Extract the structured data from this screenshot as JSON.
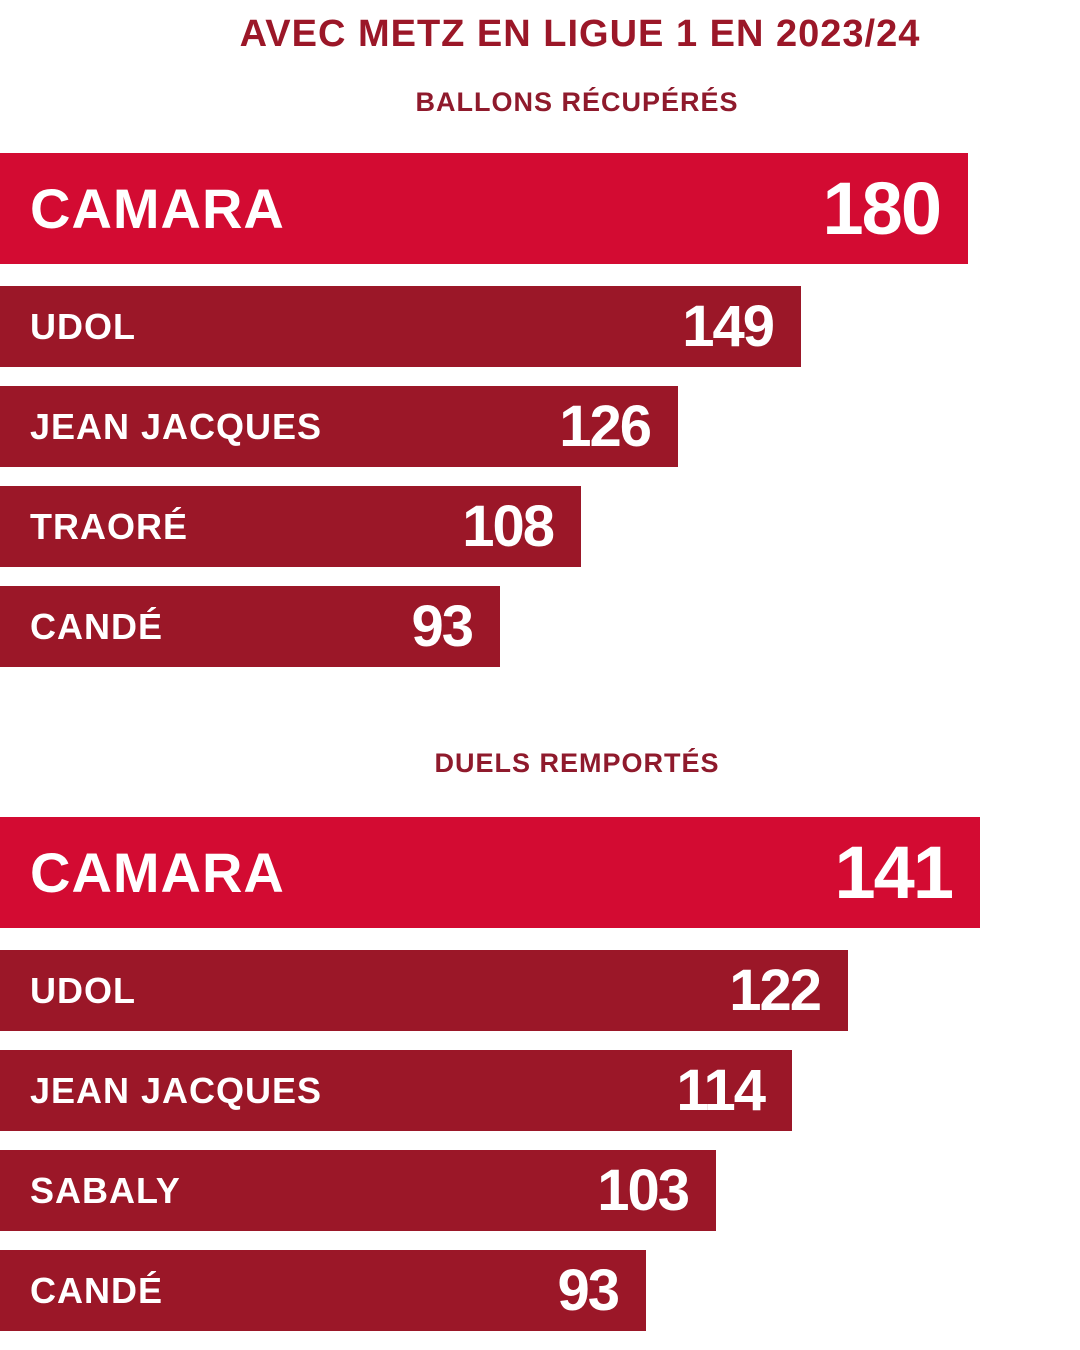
{
  "header": {
    "title": "AVEC METZ EN LIGUE 1 EN 2023/24"
  },
  "colors": {
    "highlight": "#d30b32",
    "bar": "#9b1728",
    "text": "#ffffff"
  },
  "chart_data": [
    {
      "type": "bar",
      "orientation": "horizontal",
      "title": "BALLONS RÉCUPÉRÉS",
      "categories": [
        "CAMARA",
        "UDOL",
        "JEAN JACQUES",
        "TRAORÉ",
        "CANDÉ"
      ],
      "values": [
        180,
        149,
        126,
        108,
        93
      ],
      "value_labels": [
        "180",
        "149",
        "126",
        "108",
        "93"
      ],
      "grid": false
    },
    {
      "type": "bar",
      "orientation": "horizontal",
      "title": "DUELS REMPORTÉS",
      "categories": [
        "CAMARA",
        "UDOL",
        "JEAN JACQUES",
        "SABALY",
        "CANDÉ"
      ],
      "values": [
        141,
        122,
        114,
        103,
        93
      ],
      "value_labels": [
        "141",
        "122",
        "114",
        "103",
        "93"
      ],
      "grid": false
    }
  ]
}
